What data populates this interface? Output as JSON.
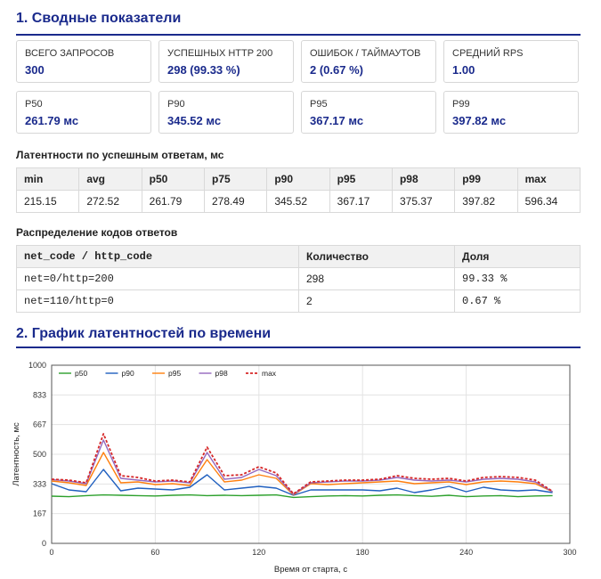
{
  "sections": {
    "summary_title": "1. Сводные показатели",
    "chart_title": "2. График латентностей по времени"
  },
  "cards": [
    {
      "label": "ВСЕГО ЗАПРОСОВ",
      "value": "300"
    },
    {
      "label": "УСПЕШНЫХ HTTP 200",
      "value": "298 (99.33 %)"
    },
    {
      "label": "ОШИБОК / ТАЙМАУТОВ",
      "value": "2 (0.67 %)"
    },
    {
      "label": "СРЕДНИЙ RPS",
      "value": "1.00"
    },
    {
      "label": "P50",
      "value": "261.79 мс"
    },
    {
      "label": "P90",
      "value": "345.52 мс"
    },
    {
      "label": "P95",
      "value": "367.17 мс"
    },
    {
      "label": "P99",
      "value": "397.82 мс"
    }
  ],
  "latency": {
    "title": "Латентности по успешным ответам, мс",
    "headers": [
      "min",
      "avg",
      "p50",
      "p75",
      "p90",
      "p95",
      "p98",
      "p99",
      "max"
    ],
    "values": [
      "215.15",
      "272.52",
      "261.79",
      "278.49",
      "345.52",
      "367.17",
      "375.37",
      "397.82",
      "596.34"
    ]
  },
  "codes": {
    "title": "Распределение кодов ответов",
    "headers": [
      "net_code / http_code",
      "Количество",
      "Доля"
    ],
    "rows": [
      [
        "net=0/http=200",
        "298",
        "99.33 %"
      ],
      [
        "net=110/http=0",
        "2",
        "0.67 %"
      ]
    ]
  },
  "chart_data": {
    "type": "line",
    "xlabel": "Время от старта, с",
    "ylabel": "Латентность, мс",
    "xlim": [
      0,
      300
    ],
    "ylim": [
      0,
      1000
    ],
    "xticks": [
      0,
      60,
      120,
      180,
      240,
      300
    ],
    "yticks": [
      0,
      167,
      333,
      500,
      667,
      833,
      1000
    ],
    "grid": true,
    "legend": "top-left",
    "x": [
      0,
      10,
      20,
      30,
      40,
      50,
      60,
      70,
      80,
      90,
      100,
      110,
      120,
      130,
      140,
      150,
      160,
      170,
      180,
      190,
      200,
      210,
      220,
      230,
      240,
      250,
      260,
      270,
      280,
      290
    ],
    "series": [
      {
        "name": "p50",
        "color": "#2ca02c",
        "values": [
          265,
          262,
          268,
          272,
          270,
          268,
          266,
          270,
          272,
          268,
          270,
          268,
          270,
          272,
          258,
          262,
          266,
          268,
          266,
          270,
          272,
          268,
          264,
          270,
          262,
          266,
          268,
          262,
          266,
          268
        ]
      },
      {
        "name": "p90",
        "color": "#1f5fbf",
        "values": [
          335,
          300,
          290,
          415,
          295,
          310,
          305,
          300,
          315,
          385,
          300,
          310,
          320,
          310,
          270,
          300,
          300,
          300,
          300,
          295,
          310,
          285,
          300,
          320,
          290,
          315,
          300,
          295,
          300,
          285
        ]
      },
      {
        "name": "p95",
        "color": "#ff7f0e",
        "values": [
          350,
          340,
          325,
          510,
          340,
          345,
          330,
          335,
          325,
          470,
          345,
          355,
          385,
          365,
          272,
          335,
          330,
          335,
          340,
          345,
          350,
          335,
          340,
          345,
          330,
          345,
          350,
          345,
          335,
          290
        ]
      },
      {
        "name": "p98",
        "color": "#9467bd",
        "values": [
          358,
          350,
          335,
          580,
          365,
          355,
          345,
          350,
          340,
          510,
          360,
          370,
          415,
          380,
          275,
          340,
          345,
          350,
          350,
          355,
          370,
          355,
          350,
          355,
          345,
          360,
          365,
          360,
          345,
          290
        ]
      },
      {
        "name": "max",
        "color": "#d62728",
        "dashed": true,
        "values": [
          360,
          355,
          340,
          615,
          380,
          370,
          350,
          355,
          345,
          540,
          380,
          385,
          430,
          395,
          278,
          345,
          350,
          355,
          355,
          360,
          380,
          365,
          360,
          365,
          350,
          370,
          375,
          370,
          355,
          292
        ]
      }
    ]
  }
}
